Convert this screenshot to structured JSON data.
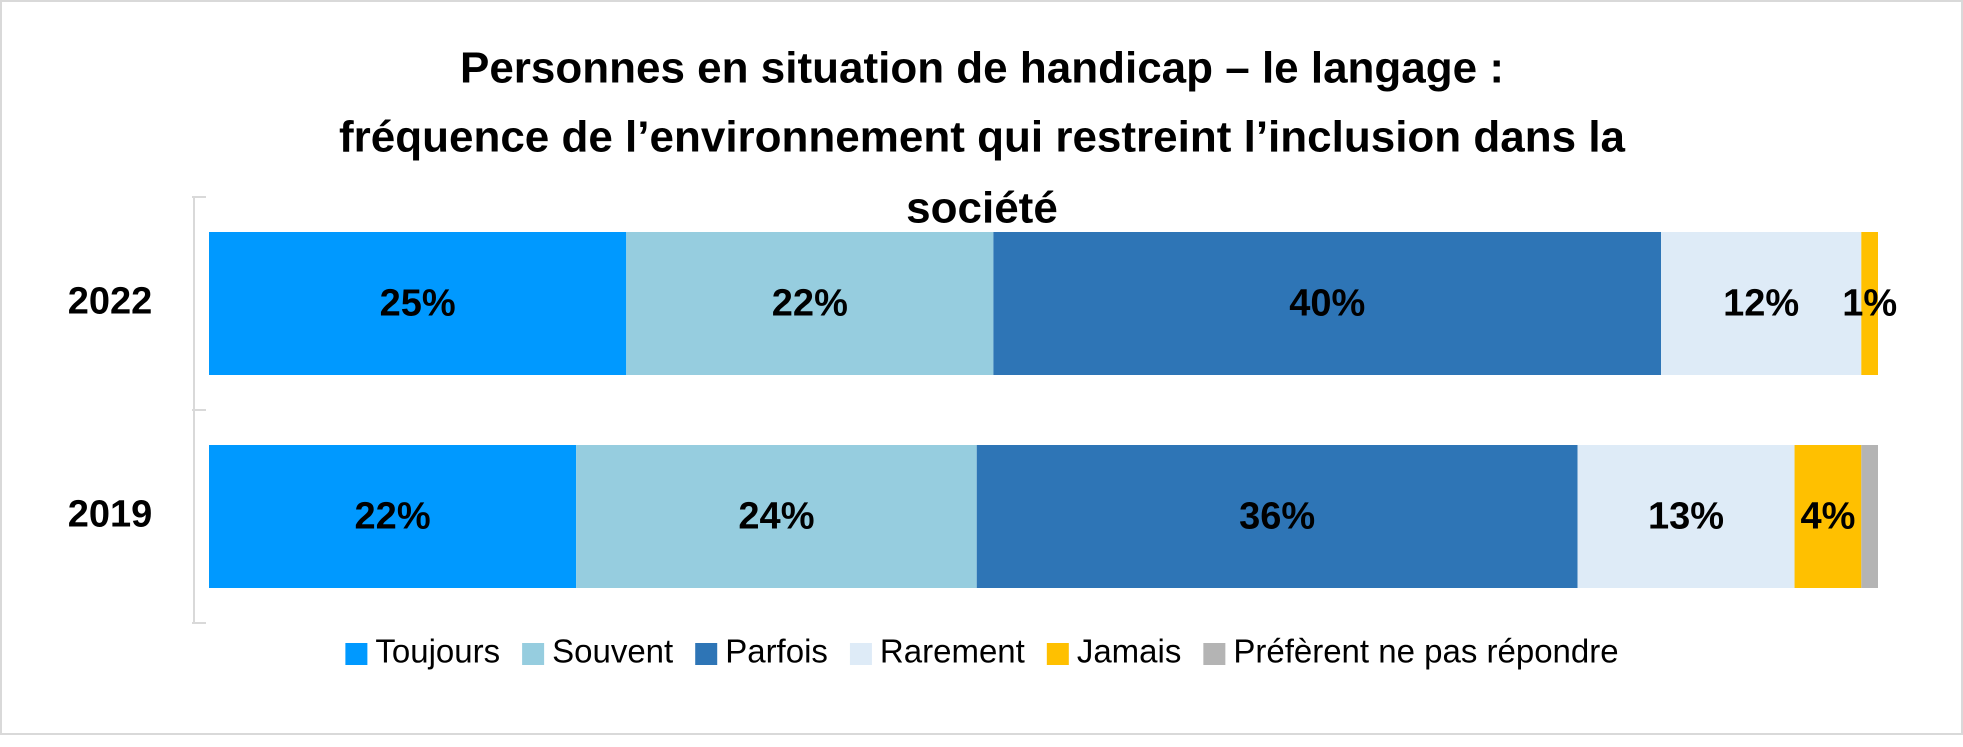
{
  "chart_data": {
    "type": "stacked-bar-horizontal",
    "title": [
      "Personnes en situation de handicap – le langage :",
      "fréquence de l’environnement qui restreint l’inclusion dans la",
      "société"
    ],
    "categories": [
      "2022",
      "2019"
    ],
    "xlim": [
      0,
      100
    ],
    "series": [
      {
        "name": "Toujours",
        "color": "#0099ff",
        "values": [
          25,
          22
        ],
        "value_labels": [
          "25%",
          "22%"
        ]
      },
      {
        "name": "Souvent",
        "color": "#96cddf",
        "values": [
          22,
          24
        ],
        "value_labels": [
          "22%",
          "24%"
        ]
      },
      {
        "name": "Parfois",
        "color": "#2e75b6",
        "values": [
          40,
          36
        ],
        "value_labels": [
          "40%",
          "36%"
        ]
      },
      {
        "name": "Rarement",
        "color": "#deebf7",
        "values": [
          12,
          13
        ],
        "value_labels": [
          "12%",
          "13%"
        ]
      },
      {
        "name": "Jamais",
        "color": "#ffc000",
        "values": [
          1,
          4
        ],
        "value_labels": [
          "1%",
          "4%"
        ]
      },
      {
        "name": "Préfèrent ne pas répondre",
        "color": "#b4b4b4",
        "values": [
          0,
          1
        ],
        "value_labels": [
          null,
          null
        ]
      }
    ],
    "legend": "bottom"
  }
}
